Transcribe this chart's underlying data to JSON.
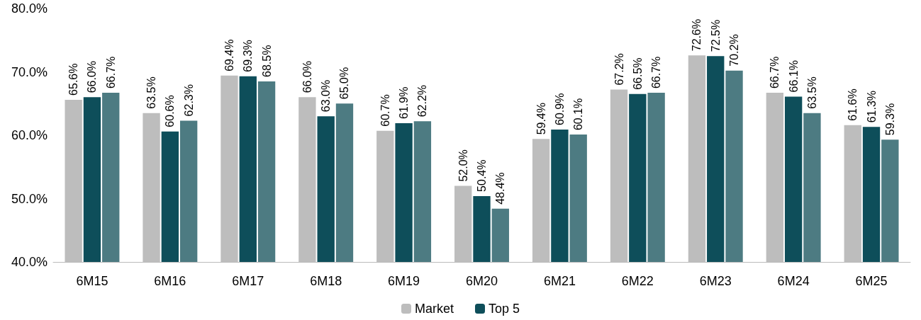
{
  "chart_data": {
    "type": "bar",
    "categories": [
      "6M15",
      "6M16",
      "6M17",
      "6M18",
      "6M19",
      "6M20",
      "6M21",
      "6M22",
      "6M23",
      "6M24",
      "6M25"
    ],
    "series": [
      {
        "name": "Market",
        "color": "#bdbdbd",
        "values": [
          65.6,
          63.5,
          69.4,
          66.0,
          60.7,
          52.0,
          59.4,
          67.2,
          72.6,
          66.7,
          61.6
        ],
        "value_labels": [
          "65.6%",
          "63.5%",
          "69.4%",
          "66.0%",
          "60.7%",
          "52.0%",
          "59.4%",
          "67.2%",
          "72.6%",
          "66.7%",
          "61.6%"
        ]
      },
      {
        "name": "Top 5",
        "color": "#0e4e5a",
        "values": [
          66.0,
          60.6,
          69.3,
          63.0,
          61.9,
          50.4,
          60.9,
          66.5,
          72.5,
          66.1,
          61.3
        ],
        "value_labels": [
          "66.0%",
          "60.6%",
          "69.3%",
          "63.0%",
          "61.9%",
          "50.4%",
          "60.9%",
          "66.5%",
          "72.5%",
          "66.1%",
          "61.3%"
        ]
      },
      {
        "color": "#4d7b82",
        "values": [
          66.7,
          62.3,
          68.5,
          65.0,
          62.2,
          48.4,
          60.1,
          66.7,
          70.2,
          63.5,
          59.3
        ],
        "value_labels": [
          "66.7%",
          "62.3%",
          "68.5%",
          "65.0%",
          "62.2%",
          "48.4%",
          "60.1%",
          "66.7%",
          "70.2%",
          "63.5%",
          "59.3%"
        ]
      }
    ],
    "ylim": [
      40,
      80
    ],
    "yticks": [
      {
        "value": 40,
        "label": "40.0%"
      },
      {
        "value": 50,
        "label": "50.0%"
      },
      {
        "value": 60,
        "label": "60.0%"
      },
      {
        "value": 70,
        "label": "70.0%"
      },
      {
        "value": 80,
        "label": "80.0%"
      }
    ],
    "grid": false,
    "legend": "bottom"
  }
}
